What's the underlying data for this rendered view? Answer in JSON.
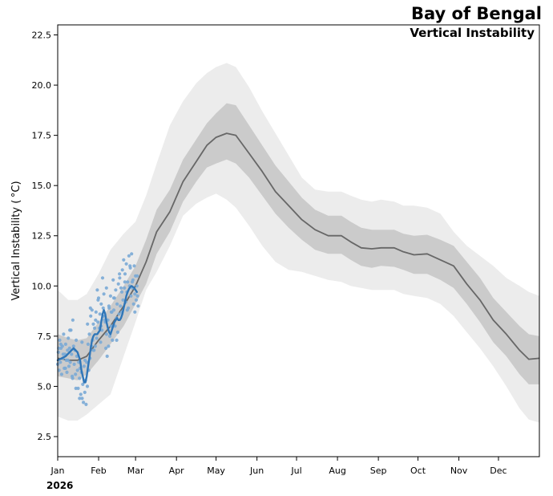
{
  "chart_data": {
    "type": "line",
    "title": "Bay of Bengal",
    "subtitle": "Vertical Instability",
    "ylabel": "Vertical Instability ($^\\circ$C)",
    "ylabel_display": "Vertical Instability ( °C)",
    "xlabel": "",
    "year_label": "2026",
    "xlim_doy": [
      0,
      365
    ],
    "ylim": [
      1.5,
      23.0
    ],
    "yticks": [
      2.5,
      5.0,
      7.5,
      10.0,
      12.5,
      15.0,
      17.5,
      20.0,
      22.5
    ],
    "ytick_labels": [
      "2.5",
      "5.0",
      "7.5",
      "10.0",
      "12.5",
      "15.0",
      "17.5",
      "20.0",
      "22.5"
    ],
    "xticks": [
      {
        "label": "Jan",
        "doy": 0
      },
      {
        "label": "Feb",
        "doy": 31
      },
      {
        "label": "Mar",
        "doy": 59
      },
      {
        "label": "Apr",
        "doy": 90
      },
      {
        "label": "May",
        "doy": 120
      },
      {
        "label": "Jun",
        "doy": 151
      },
      {
        "label": "Jul",
        "doy": 181
      },
      {
        "label": "Aug",
        "doy": 212
      },
      {
        "label": "Sep",
        "doy": 243
      },
      {
        "label": "Oct",
        "doy": 273
      },
      {
        "label": "Nov",
        "doy": 304
      },
      {
        "label": "Dec",
        "doy": 334
      }
    ],
    "climatology": {
      "doy": [
        0,
        8,
        15,
        22,
        31,
        40,
        50,
        59,
        67,
        75,
        85,
        95,
        105,
        113,
        120,
        128,
        135,
        145,
        155,
        165,
        175,
        185,
        195,
        205,
        215,
        222,
        230,
        238,
        245,
        255,
        262,
        270,
        280,
        290,
        300,
        310,
        320,
        330,
        340,
        350,
        357,
        365
      ],
      "median": [
        6.4,
        6.3,
        6.3,
        6.5,
        7.3,
        8.0,
        9.0,
        10.0,
        11.2,
        12.7,
        13.7,
        15.2,
        16.2,
        17.0,
        17.4,
        17.6,
        17.5,
        16.6,
        15.7,
        14.7,
        14.0,
        13.3,
        12.8,
        12.5,
        12.5,
        12.2,
        11.9,
        11.85,
        11.9,
        11.9,
        11.7,
        11.55,
        11.6,
        11.3,
        11.0,
        10.1,
        9.3,
        8.3,
        7.6,
        6.8,
        6.35,
        6.4
      ],
      "p25": [
        5.5,
        5.4,
        5.3,
        5.6,
        6.3,
        7.1,
        8.0,
        9.1,
        10.1,
        11.6,
        12.7,
        14.2,
        15.2,
        15.9,
        16.1,
        16.3,
        16.1,
        15.4,
        14.5,
        13.6,
        12.9,
        12.3,
        11.8,
        11.6,
        11.6,
        11.3,
        11.0,
        10.9,
        11.0,
        10.95,
        10.8,
        10.6,
        10.6,
        10.3,
        9.9,
        9.1,
        8.2,
        7.2,
        6.5,
        5.6,
        5.1,
        5.1
      ],
      "p75": [
        7.6,
        7.4,
        7.3,
        7.4,
        8.2,
        9.0,
        10.0,
        11.0,
        12.3,
        13.8,
        14.8,
        16.3,
        17.3,
        18.1,
        18.6,
        19.1,
        19.0,
        18.0,
        17.0,
        16.0,
        15.2,
        14.4,
        13.8,
        13.5,
        13.5,
        13.2,
        12.9,
        12.8,
        12.8,
        12.8,
        12.6,
        12.5,
        12.55,
        12.3,
        12.0,
        11.2,
        10.4,
        9.4,
        8.7,
        8.0,
        7.6,
        7.5
      ],
      "p05": [
        3.5,
        3.3,
        3.3,
        3.6,
        4.1,
        4.6,
        6.5,
        8.2,
        9.8,
        10.7,
        12.0,
        13.5,
        14.1,
        14.4,
        14.6,
        14.3,
        13.9,
        13.0,
        12.0,
        11.2,
        10.8,
        10.7,
        10.5,
        10.3,
        10.2,
        10.0,
        9.9,
        9.8,
        9.8,
        9.8,
        9.6,
        9.5,
        9.4,
        9.1,
        8.5,
        7.7,
        6.9,
        6.0,
        5.0,
        3.9,
        3.35,
        3.2
      ],
      "p95": [
        9.8,
        9.3,
        9.3,
        9.6,
        10.6,
        11.8,
        12.6,
        13.2,
        14.5,
        16.1,
        18.0,
        19.2,
        20.1,
        20.6,
        20.9,
        21.1,
        20.9,
        19.9,
        18.7,
        17.6,
        16.5,
        15.4,
        14.8,
        14.7,
        14.7,
        14.5,
        14.3,
        14.2,
        14.3,
        14.2,
        14.0,
        14.0,
        13.9,
        13.6,
        12.7,
        12.0,
        11.5,
        11.0,
        10.4,
        10.0,
        9.7,
        9.5
      ]
    },
    "current_year": {
      "name": "2026",
      "doy": [
        0,
        3,
        6,
        9,
        12,
        15,
        17,
        18,
        19,
        20,
        21,
        22,
        23,
        24,
        25,
        26,
        27,
        28,
        29,
        30,
        31,
        32,
        33,
        34,
        35,
        36,
        37,
        38,
        39,
        40,
        41,
        42,
        43,
        44,
        45,
        46,
        47,
        48,
        49,
        50,
        51,
        52,
        53,
        54,
        55,
        56,
        57,
        58,
        59,
        60
      ],
      "value": [
        6.3,
        6.4,
        6.5,
        6.7,
        6.9,
        6.7,
        6.3,
        5.8,
        5.5,
        5.2,
        5.2,
        5.5,
        6.0,
        6.4,
        6.9,
        7.3,
        7.5,
        7.6,
        7.6,
        7.6,
        7.7,
        7.8,
        8.2,
        8.6,
        8.8,
        8.6,
        8.2,
        7.9,
        7.7,
        7.6,
        7.8,
        8.0,
        8.2,
        8.3,
        8.4,
        8.3,
        8.3,
        8.4,
        8.6,
        8.9,
        9.2,
        9.5,
        9.7,
        9.85,
        9.95,
        10.0,
        9.95,
        9.9,
        9.8,
        9.7
      ]
    },
    "observations": {
      "name": "2026 samples",
      "doy": [
        0,
        0.5,
        1,
        1.5,
        2,
        2.5,
        3,
        3.5,
        4,
        4.5,
        5,
        5.5,
        6,
        6.5,
        7,
        7.5,
        8,
        8.5,
        9,
        9.5,
        10,
        10.5,
        11,
        11.5,
        12,
        12.5,
        13,
        13.5,
        14,
        14.5,
        15,
        15.5,
        16,
        16.5,
        17,
        17.5,
        18,
        18.5,
        19,
        19.5,
        20,
        20.5,
        21,
        21.5,
        22,
        22.5,
        23,
        23.5,
        24,
        24.5,
        25,
        25.5,
        26,
        26.5,
        27,
        27.5,
        28,
        28.5,
        29,
        29.5,
        30,
        30.5,
        31,
        31.5,
        32,
        32.5,
        33,
        33.5,
        34,
        34.5,
        35,
        35.5,
        36,
        36.5,
        37,
        37.5,
        38,
        38.5,
        39,
        39.5,
        40,
        40.5,
        41,
        41.5,
        42,
        42.5,
        43,
        43.5,
        44,
        44.5,
        45,
        45.5,
        46,
        46.5,
        47,
        47.5,
        48,
        48.5,
        49,
        49.5,
        50,
        50.5,
        51,
        51.5,
        52,
        52.5,
        53,
        53.5,
        54,
        54.5,
        55,
        55.5,
        56,
        56.5,
        57,
        57.5,
        58,
        58.5,
        59,
        59.5,
        60,
        60.5,
        61,
        0.8,
        2.3,
        4.1,
        5.9,
        7.7,
        9.2,
        11.3,
        13.8,
        16.6,
        18.4,
        20.7,
        22.6,
        24.8,
        26.9,
        28.7,
        30.6,
        32.8,
        34.7,
        36.9,
        38.8,
        40.6,
        42.5,
        44.7,
        46.8,
        48.6,
        50.9,
        52.7,
        54.8,
        56.6,
        58.5,
        60.3
      ],
      "value": [
        6.1,
        6.7,
        5.8,
        7.3,
        6.2,
        6.9,
        5.6,
        7.0,
        6.4,
        7.6,
        5.9,
        6.6,
        7.1,
        6.3,
        5.7,
        6.8,
        7.4,
        6.0,
        6.9,
        6.2,
        7.8,
        6.6,
        5.5,
        8.3,
        7.0,
        6.1,
        6.8,
        5.6,
        7.3,
        6.5,
        5.8,
        4.9,
        6.2,
        5.4,
        5.9,
        4.6,
        5.7,
        4.4,
        5.1,
        4.2,
        6.0,
        4.7,
        5.3,
        4.1,
        6.2,
        5.0,
        7.1,
        5.8,
        7.6,
        6.4,
        8.5,
        7.0,
        8.8,
        7.3,
        8.1,
        6.8,
        7.9,
        7.0,
        8.7,
        7.4,
        9.8,
        8.2,
        9.4,
        7.9,
        8.6,
        7.2,
        9.1,
        7.8,
        10.4,
        8.9,
        9.6,
        8.3,
        8.2,
        6.9,
        7.6,
        6.5,
        8.3,
        7.0,
        8.9,
        7.5,
        9.5,
        8.0,
        8.7,
        7.3,
        10.3,
        8.8,
        9.4,
        8.0,
        9.8,
        8.4,
        9.1,
        7.7,
        10.1,
        8.6,
        10.4,
        9.0,
        9.9,
        8.7,
        10.8,
        9.3,
        11.3,
        9.9,
        10.6,
        9.2,
        11.1,
        9.7,
        10.2,
        8.9,
        11.5,
        10.0,
        10.9,
        9.5,
        11.6,
        10.2,
        10.3,
        9.1,
        11.0,
        9.6,
        10.5,
        9.3,
        10.0,
        9.5,
        9.0,
        6.9,
        7.1,
        6.6,
        5.9,
        6.3,
        7.8,
        5.4,
        4.9,
        4.4,
        7.2,
        6.3,
        8.1,
        8.9,
        6.8,
        8.3,
        9.3,
        8.0,
        8.5,
        9.9,
        9.0,
        8.7,
        9.4,
        7.3,
        10.6,
        9.7,
        10.2,
        8.8,
        11.0,
        9.9,
        8.7,
        10.5
      ]
    },
    "legend": "none",
    "grid": false
  }
}
